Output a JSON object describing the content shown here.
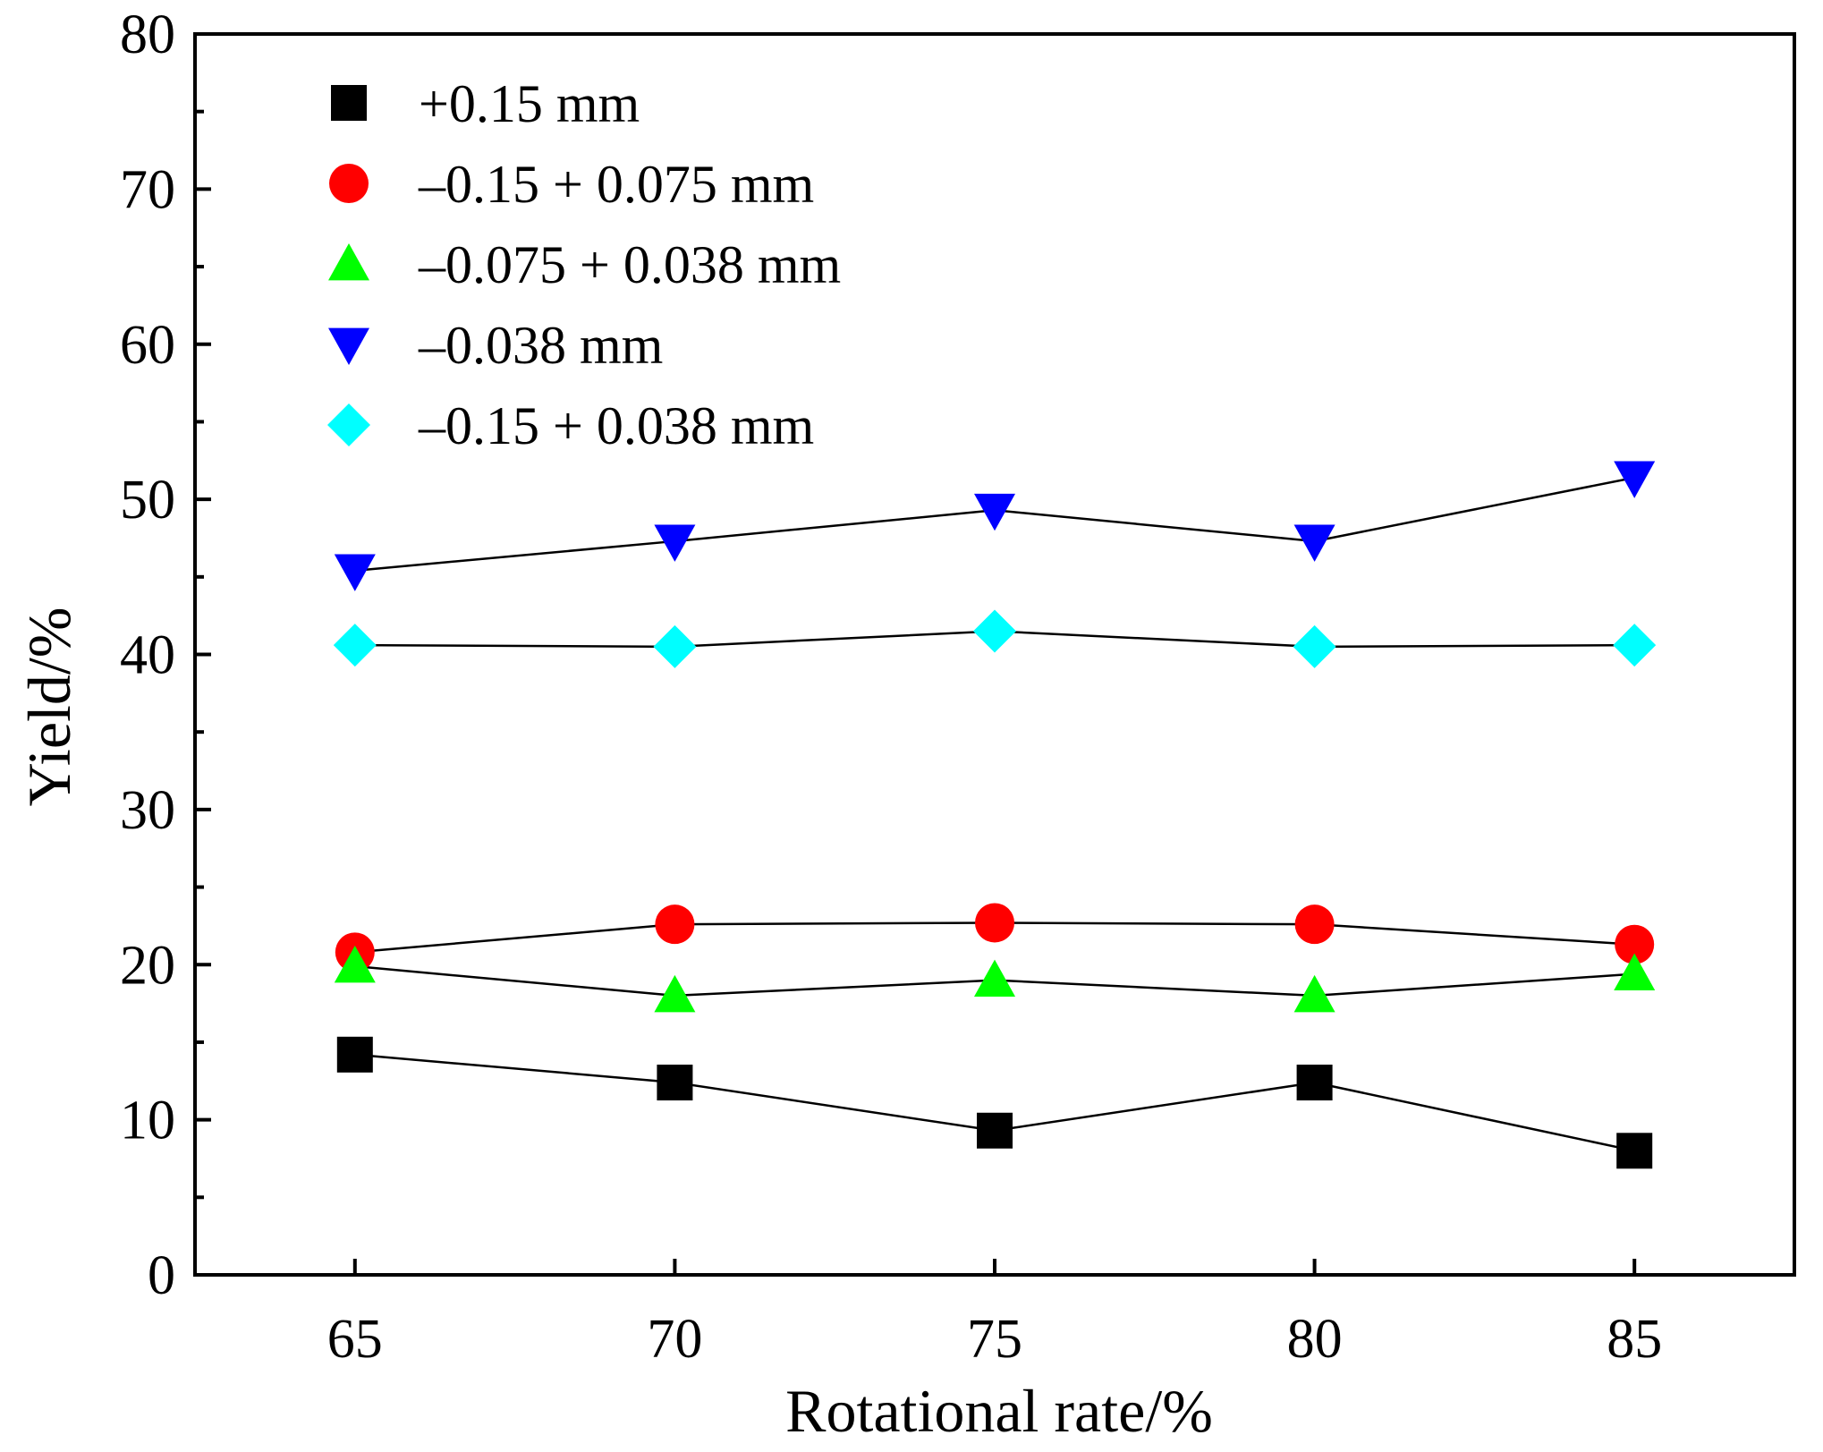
{
  "chart_data": {
    "type": "line",
    "title": "",
    "xlabel": "Rotational rate/%",
    "ylabel": "Yield/%",
    "x": [
      65,
      70,
      75,
      80,
      85
    ],
    "x_tick_labels": [
      "65",
      "70",
      "75",
      "80",
      "85"
    ],
    "xlim": [
      62.5,
      87.5
    ],
    "ylim": [
      0,
      80
    ],
    "y_tick_labels": [
      "0",
      "10",
      "20",
      "30",
      "40",
      "50",
      "60",
      "70",
      "80"
    ],
    "grid": false,
    "legend_position": "top-left",
    "series": [
      {
        "name": "+0.15 mm",
        "marker": "square",
        "color": "#000000",
        "values": [
          14.2,
          12.4,
          9.3,
          12.4,
          8.0
        ]
      },
      {
        "name": "–0.15 + 0.075 mm",
        "marker": "circle",
        "color": "#ff0000",
        "values": [
          20.8,
          22.6,
          22.7,
          22.6,
          21.3
        ]
      },
      {
        "name": "–0.075 + 0.038 mm",
        "marker": "triangle-up",
        "color": "#00ff00",
        "values": [
          19.9,
          18.0,
          19.0,
          18.0,
          19.4
        ]
      },
      {
        "name": "–0.038 mm",
        "marker": "triangle-down",
        "color": "#0000ff",
        "values": [
          45.4,
          47.3,
          49.3,
          47.3,
          51.4
        ]
      },
      {
        "name": "–0.15 + 0.038 mm",
        "marker": "diamond",
        "color": "#00ffff",
        "values": [
          40.6,
          40.5,
          41.5,
          40.5,
          40.6
        ]
      }
    ]
  }
}
